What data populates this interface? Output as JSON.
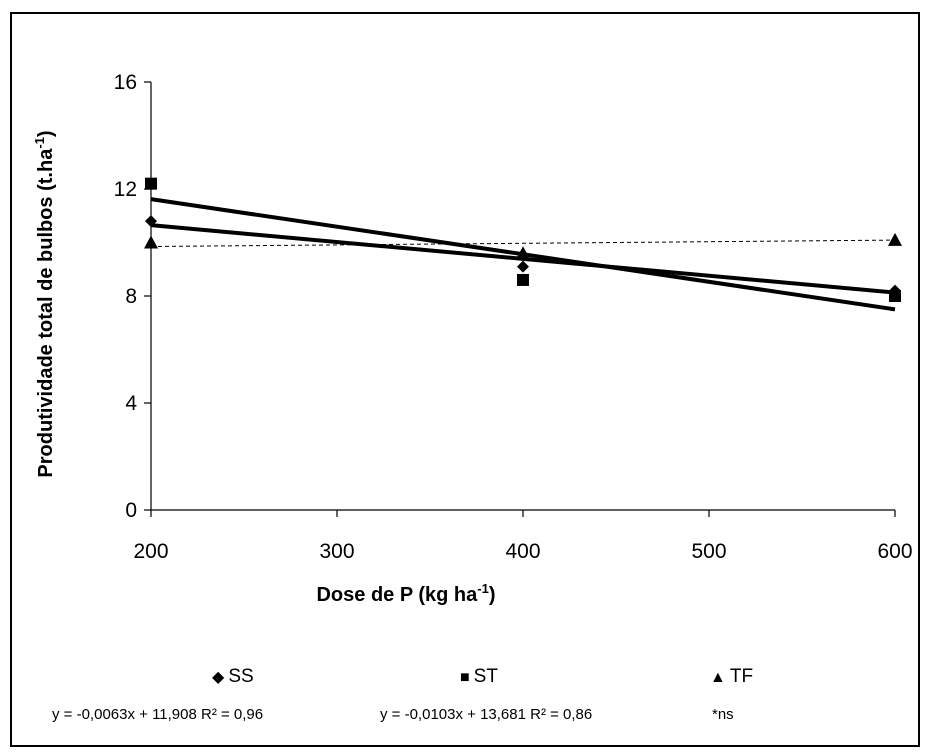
{
  "chart_data": {
    "type": "scatter",
    "x": [
      200,
      400,
      600
    ],
    "series": [
      {
        "name": "SS",
        "marker": "diamond",
        "values": [
          10.8,
          9.1,
          8.2
        ],
        "trend": {
          "slope": -0.0063,
          "intercept": 11.908,
          "style": "solid"
        }
      },
      {
        "name": "ST",
        "marker": "square",
        "values": [
          12.2,
          8.6,
          8.0
        ],
        "trend": {
          "slope": -0.0103,
          "intercept": 13.681,
          "style": "solid"
        }
      },
      {
        "name": "TF",
        "marker": "triangle",
        "values": [
          10.0,
          9.6,
          10.1
        ],
        "trend": {
          "slope": 0.0006,
          "intercept": 9.73,
          "style": "dashed"
        }
      }
    ],
    "xlabel": "Dose de P (kg ha",
    "xlabel_sup": "-1",
    "xlabel_end": ")",
    "ylabel": "Produtividade total de bulbos  (t.ha",
    "ylabel_sup": "-1",
    "ylabel_end": ")",
    "xlim": [
      200,
      600
    ],
    "ylim": [
      0,
      16
    ],
    "xticks": [
      "200",
      "300",
      "400",
      "500",
      "600"
    ],
    "yticks": [
      "0",
      "4",
      "8",
      "12",
      "16"
    ],
    "grid": false,
    "legend_position": "bottom",
    "equations": [
      "y = -0,0063x + 11,908 R² = 0,96",
      "y = -0,0103x + 13,681 R² = 0,86",
      "*ns"
    ]
  },
  "legend": {
    "ss_symbol": "◆",
    "st_symbol": "■",
    "tf_symbol": "▲"
  },
  "colors": {
    "line": "#000000",
    "marker": "#000000"
  }
}
